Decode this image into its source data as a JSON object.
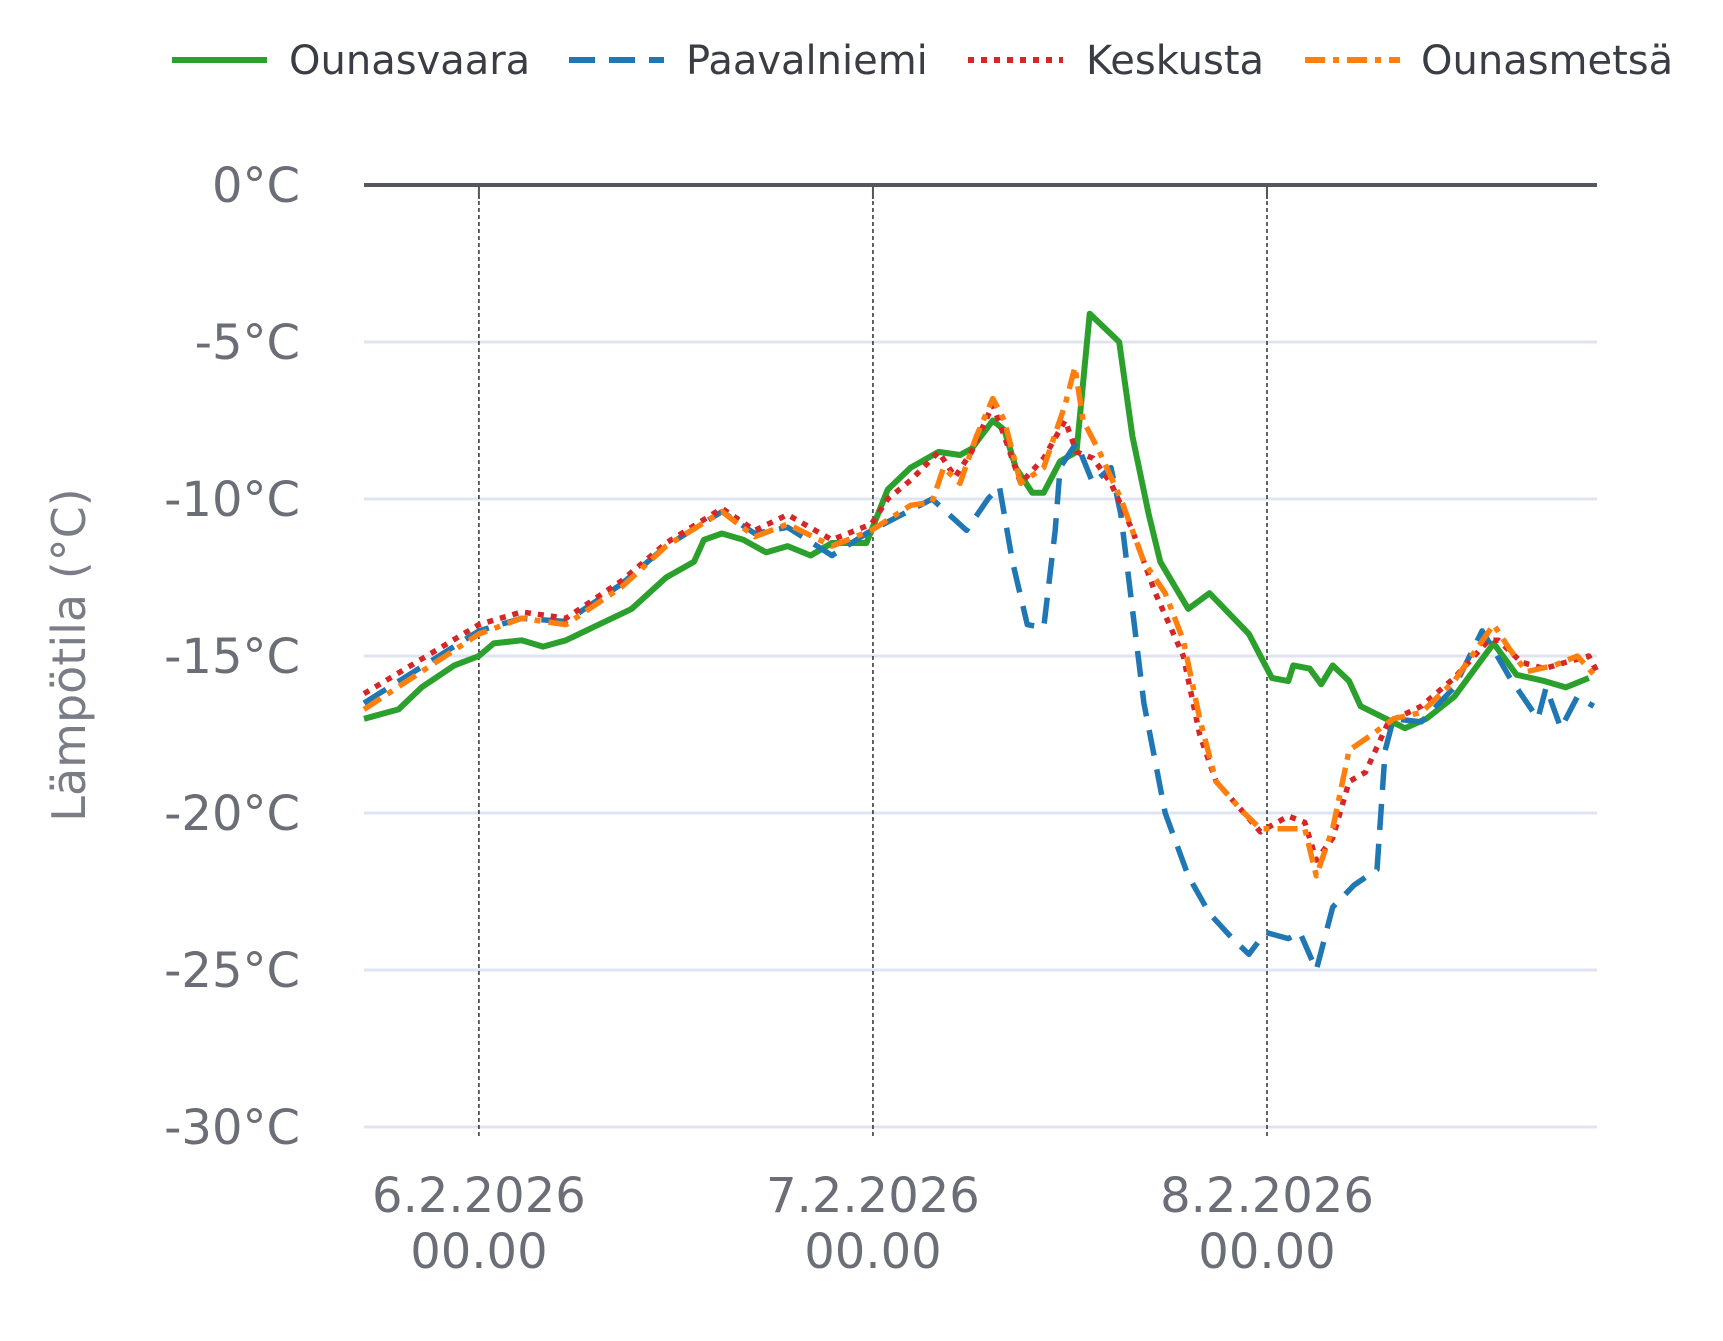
{
  "chart_data": {
    "type": "line",
    "title": "",
    "xlabel": "",
    "ylabel": "Lämpötila (°C)",
    "x_units": "hours since 6.2.2026 00.00",
    "xlim": [
      -7,
      68.1
    ],
    "ylim": [
      -30,
      0
    ],
    "yticks": [
      0,
      -5,
      -10,
      -15,
      -20,
      -25,
      -30
    ],
    "ytick_labels": [
      "0°C",
      "-5°C",
      "-10°C",
      "-15°C",
      "-20°C",
      "-25°C",
      "-30°C"
    ],
    "xticks": [
      0,
      24,
      48
    ],
    "xtick_labels": [
      [
        "6.2.2026",
        "00.00"
      ],
      [
        "7.2.2026",
        "00.00"
      ],
      [
        "8.2.2026",
        "00.00"
      ]
    ],
    "grid": true,
    "legend_position": "top",
    "series": [
      {
        "name": "Ounasvaara",
        "color": "#2ca02c",
        "style": "solid",
        "points": [
          [
            -7,
            -17.0
          ],
          [
            -4.9,
            -16.7
          ],
          [
            -3.5,
            -16.0
          ],
          [
            -1.5,
            -15.3
          ],
          [
            0,
            -15.0
          ],
          [
            0.9,
            -14.6
          ],
          [
            2.6,
            -14.5
          ],
          [
            3.9,
            -14.7
          ],
          [
            5.3,
            -14.5
          ],
          [
            7.3,
            -14.0
          ],
          [
            9.3,
            -13.5
          ],
          [
            11.4,
            -12.5
          ],
          [
            13.1,
            -12.0
          ],
          [
            13.7,
            -11.3
          ],
          [
            14.8,
            -11.1
          ],
          [
            16.1,
            -11.3
          ],
          [
            17.5,
            -11.7
          ],
          [
            18.8,
            -11.5
          ],
          [
            20.2,
            -11.8
          ],
          [
            21.5,
            -11.4
          ],
          [
            23.6,
            -11.4
          ],
          [
            24.9,
            -9.7
          ],
          [
            26.3,
            -9.0
          ],
          [
            28.0,
            -8.5
          ],
          [
            29.3,
            -8.6
          ],
          [
            30.0,
            -8.4
          ],
          [
            31.3,
            -7.5
          ],
          [
            32.0,
            -7.8
          ],
          [
            32.7,
            -9.0
          ],
          [
            33.7,
            -9.8
          ],
          [
            34.4,
            -9.8
          ],
          [
            35.4,
            -8.8
          ],
          [
            36.4,
            -8.5
          ],
          [
            37.2,
            -4.1
          ],
          [
            39.0,
            -5.0
          ],
          [
            39.8,
            -8.0
          ],
          [
            40.8,
            -10.5
          ],
          [
            41.5,
            -12.0
          ],
          [
            43.2,
            -13.5
          ],
          [
            44.5,
            -13.0
          ],
          [
            46.9,
            -14.3
          ],
          [
            48.3,
            -15.7
          ],
          [
            49.3,
            -15.8
          ],
          [
            49.6,
            -15.3
          ],
          [
            50.6,
            -15.4
          ],
          [
            51.3,
            -15.9
          ],
          [
            52.0,
            -15.3
          ],
          [
            53.0,
            -15.8
          ],
          [
            53.7,
            -16.6
          ],
          [
            56.4,
            -17.3
          ],
          [
            57.7,
            -17.0
          ],
          [
            59.4,
            -16.3
          ],
          [
            61.8,
            -14.6
          ],
          [
            63.2,
            -15.6
          ],
          [
            64.9,
            -15.8
          ],
          [
            66.2,
            -16.0
          ],
          [
            67.6,
            -15.7
          ]
        ]
      },
      {
        "name": "Paavalniemi",
        "color": "#1f77b4",
        "style": "dashed",
        "points": [
          [
            -7,
            -16.5
          ],
          [
            0,
            -14.2
          ],
          [
            2.6,
            -13.8
          ],
          [
            5.3,
            -13.9
          ],
          [
            8.7,
            -12.7
          ],
          [
            11.4,
            -11.5
          ],
          [
            14.8,
            -10.4
          ],
          [
            16.8,
            -11.1
          ],
          [
            18.8,
            -10.9
          ],
          [
            21.5,
            -11.8
          ],
          [
            23.9,
            -11.0
          ],
          [
            27.6,
            -10.0
          ],
          [
            29.7,
            -11.0
          ],
          [
            31.0,
            -10.0
          ],
          [
            31.7,
            -9.6
          ],
          [
            32.5,
            -12.0
          ],
          [
            33.4,
            -14.0
          ],
          [
            34.4,
            -14.1
          ],
          [
            35.1,
            -11.0
          ],
          [
            35.4,
            -9.0
          ],
          [
            36.4,
            -8.2
          ],
          [
            37.4,
            -9.5
          ],
          [
            38.5,
            -9.0
          ],
          [
            39.1,
            -10.5
          ],
          [
            40.5,
            -16.5
          ],
          [
            41.8,
            -20.0
          ],
          [
            43.2,
            -22.0
          ],
          [
            44.5,
            -23.2
          ],
          [
            45.9,
            -24.0
          ],
          [
            46.9,
            -24.5
          ],
          [
            47.9,
            -23.8
          ],
          [
            49.3,
            -24.0
          ],
          [
            50.0,
            -23.8
          ],
          [
            51.0,
            -25.0
          ],
          [
            52.0,
            -23.0
          ],
          [
            53.3,
            -22.3
          ],
          [
            54.7,
            -21.8
          ],
          [
            55.2,
            -18.0
          ],
          [
            55.7,
            -17.0
          ],
          [
            57.4,
            -17.1
          ],
          [
            59.4,
            -16.0
          ],
          [
            61.1,
            -14.2
          ],
          [
            61.8,
            -14.8
          ],
          [
            62.8,
            -15.7
          ],
          [
            64.5,
            -17.0
          ],
          [
            65.0,
            -16.0
          ],
          [
            65.9,
            -17.3
          ],
          [
            66.9,
            -16.3
          ],
          [
            67.9,
            -16.6
          ]
        ]
      },
      {
        "name": "Keskusta",
        "color": "#d62728",
        "style": "dotted",
        "points": [
          [
            -7,
            -16.2
          ],
          [
            0,
            -14.0
          ],
          [
            2.6,
            -13.6
          ],
          [
            5.3,
            -13.8
          ],
          [
            8.7,
            -12.6
          ],
          [
            11.4,
            -11.4
          ],
          [
            14.8,
            -10.3
          ],
          [
            16.8,
            -11.0
          ],
          [
            18.8,
            -10.5
          ],
          [
            21.5,
            -11.3
          ],
          [
            23.9,
            -10.8
          ],
          [
            24.9,
            -10.0
          ],
          [
            26.3,
            -9.4
          ],
          [
            28.0,
            -8.5
          ],
          [
            29.0,
            -9.3
          ],
          [
            30.0,
            -8.5
          ],
          [
            31.3,
            -7.0
          ],
          [
            32.0,
            -8.0
          ],
          [
            33.0,
            -9.5
          ],
          [
            34.4,
            -8.7
          ],
          [
            35.7,
            -7.5
          ],
          [
            36.4,
            -8.5
          ],
          [
            37.4,
            -8.7
          ],
          [
            38.5,
            -9.5
          ],
          [
            39.8,
            -11.0
          ],
          [
            41.2,
            -13.0
          ],
          [
            42.9,
            -15.0
          ],
          [
            43.9,
            -17.5
          ],
          [
            44.9,
            -19.0
          ],
          [
            46.6,
            -20.0
          ],
          [
            47.6,
            -20.6
          ],
          [
            49.3,
            -20.1
          ],
          [
            50.3,
            -20.3
          ],
          [
            51.0,
            -21.5
          ],
          [
            52.0,
            -20.8
          ],
          [
            53.0,
            -19.0
          ],
          [
            54.0,
            -18.7
          ],
          [
            55.4,
            -17.1
          ],
          [
            57.4,
            -16.6
          ],
          [
            59.4,
            -15.7
          ],
          [
            61.5,
            -14.5
          ],
          [
            62.1,
            -14.5
          ],
          [
            63.5,
            -15.2
          ],
          [
            64.9,
            -15.4
          ],
          [
            66.2,
            -15.2
          ],
          [
            67.6,
            -15.0
          ],
          [
            68.1,
            -15.5
          ]
        ]
      },
      {
        "name": "Ounasmetsä",
        "color": "#ff7f0e",
        "style": "dashdot",
        "points": [
          [
            -7,
            -16.7
          ],
          [
            0,
            -14.3
          ],
          [
            2.6,
            -13.8
          ],
          [
            5.3,
            -14.0
          ],
          [
            8.7,
            -12.8
          ],
          [
            11.4,
            -11.5
          ],
          [
            14.8,
            -10.4
          ],
          [
            16.8,
            -11.2
          ],
          [
            18.8,
            -10.8
          ],
          [
            21.5,
            -11.5
          ],
          [
            23.9,
            -11.0
          ],
          [
            26.3,
            -10.2
          ],
          [
            27.6,
            -10.1
          ],
          [
            28.3,
            -9.0
          ],
          [
            29.3,
            -9.5
          ],
          [
            30.3,
            -8.0
          ],
          [
            31.3,
            -6.8
          ],
          [
            32.0,
            -7.5
          ],
          [
            33.0,
            -9.5
          ],
          [
            34.4,
            -9.0
          ],
          [
            35.7,
            -7.0
          ],
          [
            36.3,
            -5.8
          ],
          [
            36.8,
            -7.5
          ],
          [
            37.8,
            -8.5
          ],
          [
            39.1,
            -10.0
          ],
          [
            40.5,
            -12.0
          ],
          [
            41.8,
            -13.0
          ],
          [
            42.9,
            -14.5
          ],
          [
            43.9,
            -17.0
          ],
          [
            44.9,
            -19.0
          ],
          [
            46.6,
            -20.0
          ],
          [
            47.6,
            -20.5
          ],
          [
            49.3,
            -20.5
          ],
          [
            50.3,
            -20.5
          ],
          [
            51.0,
            -22.0
          ],
          [
            52.0,
            -20.5
          ],
          [
            53.0,
            -18.0
          ],
          [
            54.4,
            -17.5
          ],
          [
            55.7,
            -17.0
          ],
          [
            57.4,
            -16.8
          ],
          [
            59.4,
            -15.8
          ],
          [
            61.8,
            -14.0
          ],
          [
            62.8,
            -14.8
          ],
          [
            63.8,
            -15.5
          ],
          [
            65.5,
            -15.3
          ],
          [
            66.9,
            -15.0
          ],
          [
            68.1,
            -15.7
          ]
        ]
      }
    ]
  }
}
